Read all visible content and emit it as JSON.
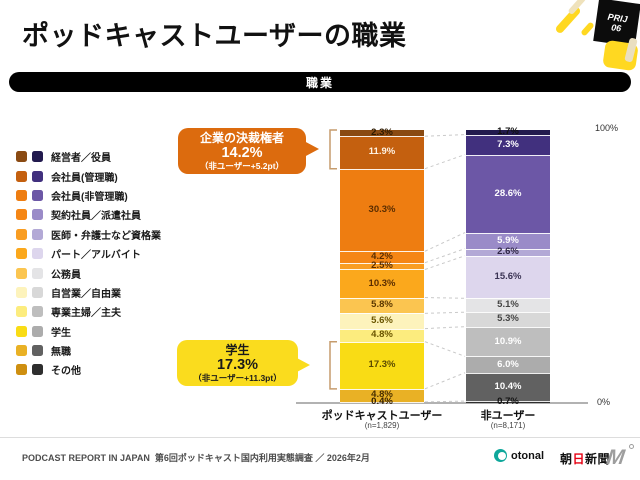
{
  "slide": {
    "title": "ポッドキャストユーザーの職業",
    "badge": {
      "line1": "PRIJ",
      "line2": "06"
    },
    "section_bar": "職業"
  },
  "chart_data": {
    "type": "bar",
    "stacked": true,
    "unit": "%",
    "title": "職業",
    "ylim": [
      0,
      100
    ],
    "axis": {
      "top_label": "100%",
      "bottom_label": "0%"
    },
    "categories": [
      "経営者／役員",
      "会社員(管理職)",
      "会社員(非管理職)",
      "契約社員／派遣社員",
      "医師・弁護士など資格業",
      "パート／アルバイト",
      "公務員",
      "自営業／自由業",
      "専業主婦／主夫",
      "学生",
      "無職",
      "その他"
    ],
    "series": [
      {
        "name": "ポッドキャストユーザー",
        "n_label": "(n=1,829)",
        "values": [
          2.3,
          11.9,
          30.3,
          4.2,
          2.5,
          10.3,
          5.8,
          5.6,
          4.8,
          17.3,
          4.8,
          0.4
        ],
        "colors": [
          "#8A4A12",
          "#C4600F",
          "#EE7D11",
          "#F58615",
          "#F99D22",
          "#FBA81C",
          "#FBC550",
          "#FDF3BC",
          "#FCEC7E",
          "#F9DC15",
          "#E9B125",
          "#CE8F10"
        ],
        "label_colors": [
          "#2e1a00",
          "#FFF3E3",
          "#5a2d00",
          "#5a2d00",
          "#5a2d00",
          "#5a2d00",
          "#5a3700",
          "#6a5500",
          "#6a5500",
          "#5a4a00",
          "#4a3000",
          "#2e1a00"
        ]
      },
      {
        "name": "非ユーザー",
        "n_label": "(n=8,171)",
        "values": [
          1.7,
          7.3,
          28.6,
          5.9,
          2.6,
          15.6,
          5.1,
          5.3,
          10.9,
          6.0,
          10.4,
          0.7
        ],
        "colors": [
          "#221A4E",
          "#41307E",
          "#6C57A6",
          "#9A8BC8",
          "#B3A9D6",
          "#DDD6ED",
          "#E4E4E6",
          "#D8D8D8",
          "#BEBEBE",
          "#ACACAC",
          "#616161",
          "#2E2E2E"
        ],
        "label_colors": [
          "#111111",
          "#FFFFFF",
          "#FFFFFF",
          "#FFFFFF",
          "#2e2545",
          "#3a3354",
          "#444444",
          "#444444",
          "#FFFFFF",
          "#FFFFFF",
          "#FFFFFF",
          "#111111"
        ]
      }
    ],
    "callouts": [
      {
        "title": "企業の決裁権者",
        "value": "14.2%",
        "note": "（非ユーザー+5.2pt）",
        "color": "#DC6B0E",
        "text_color": "#FFFFFF",
        "span": [
          0,
          1
        ]
      },
      {
        "title": "学生",
        "value": "17.3%",
        "note": "（非ユーザー+11.3pt）",
        "color": "#FADC1E",
        "text_color": "#1a1a1a",
        "span": [
          9,
          9
        ]
      }
    ],
    "bracket_color": "#C69C6D",
    "connector_color": "#C9C9C9",
    "axis_line_color": "#999999"
  },
  "footer": {
    "left_bold": "PODCAST REPORT IN JAPAN",
    "left_text": "第6回ポッドキャスト国内利用実態調査 ／ 2026年2月",
    "logos": {
      "otonal": "otonal",
      "asahi_pre": "朝",
      "asahi_red": "日",
      "asahi_post": "新聞",
      "m_mark": "M"
    }
  }
}
